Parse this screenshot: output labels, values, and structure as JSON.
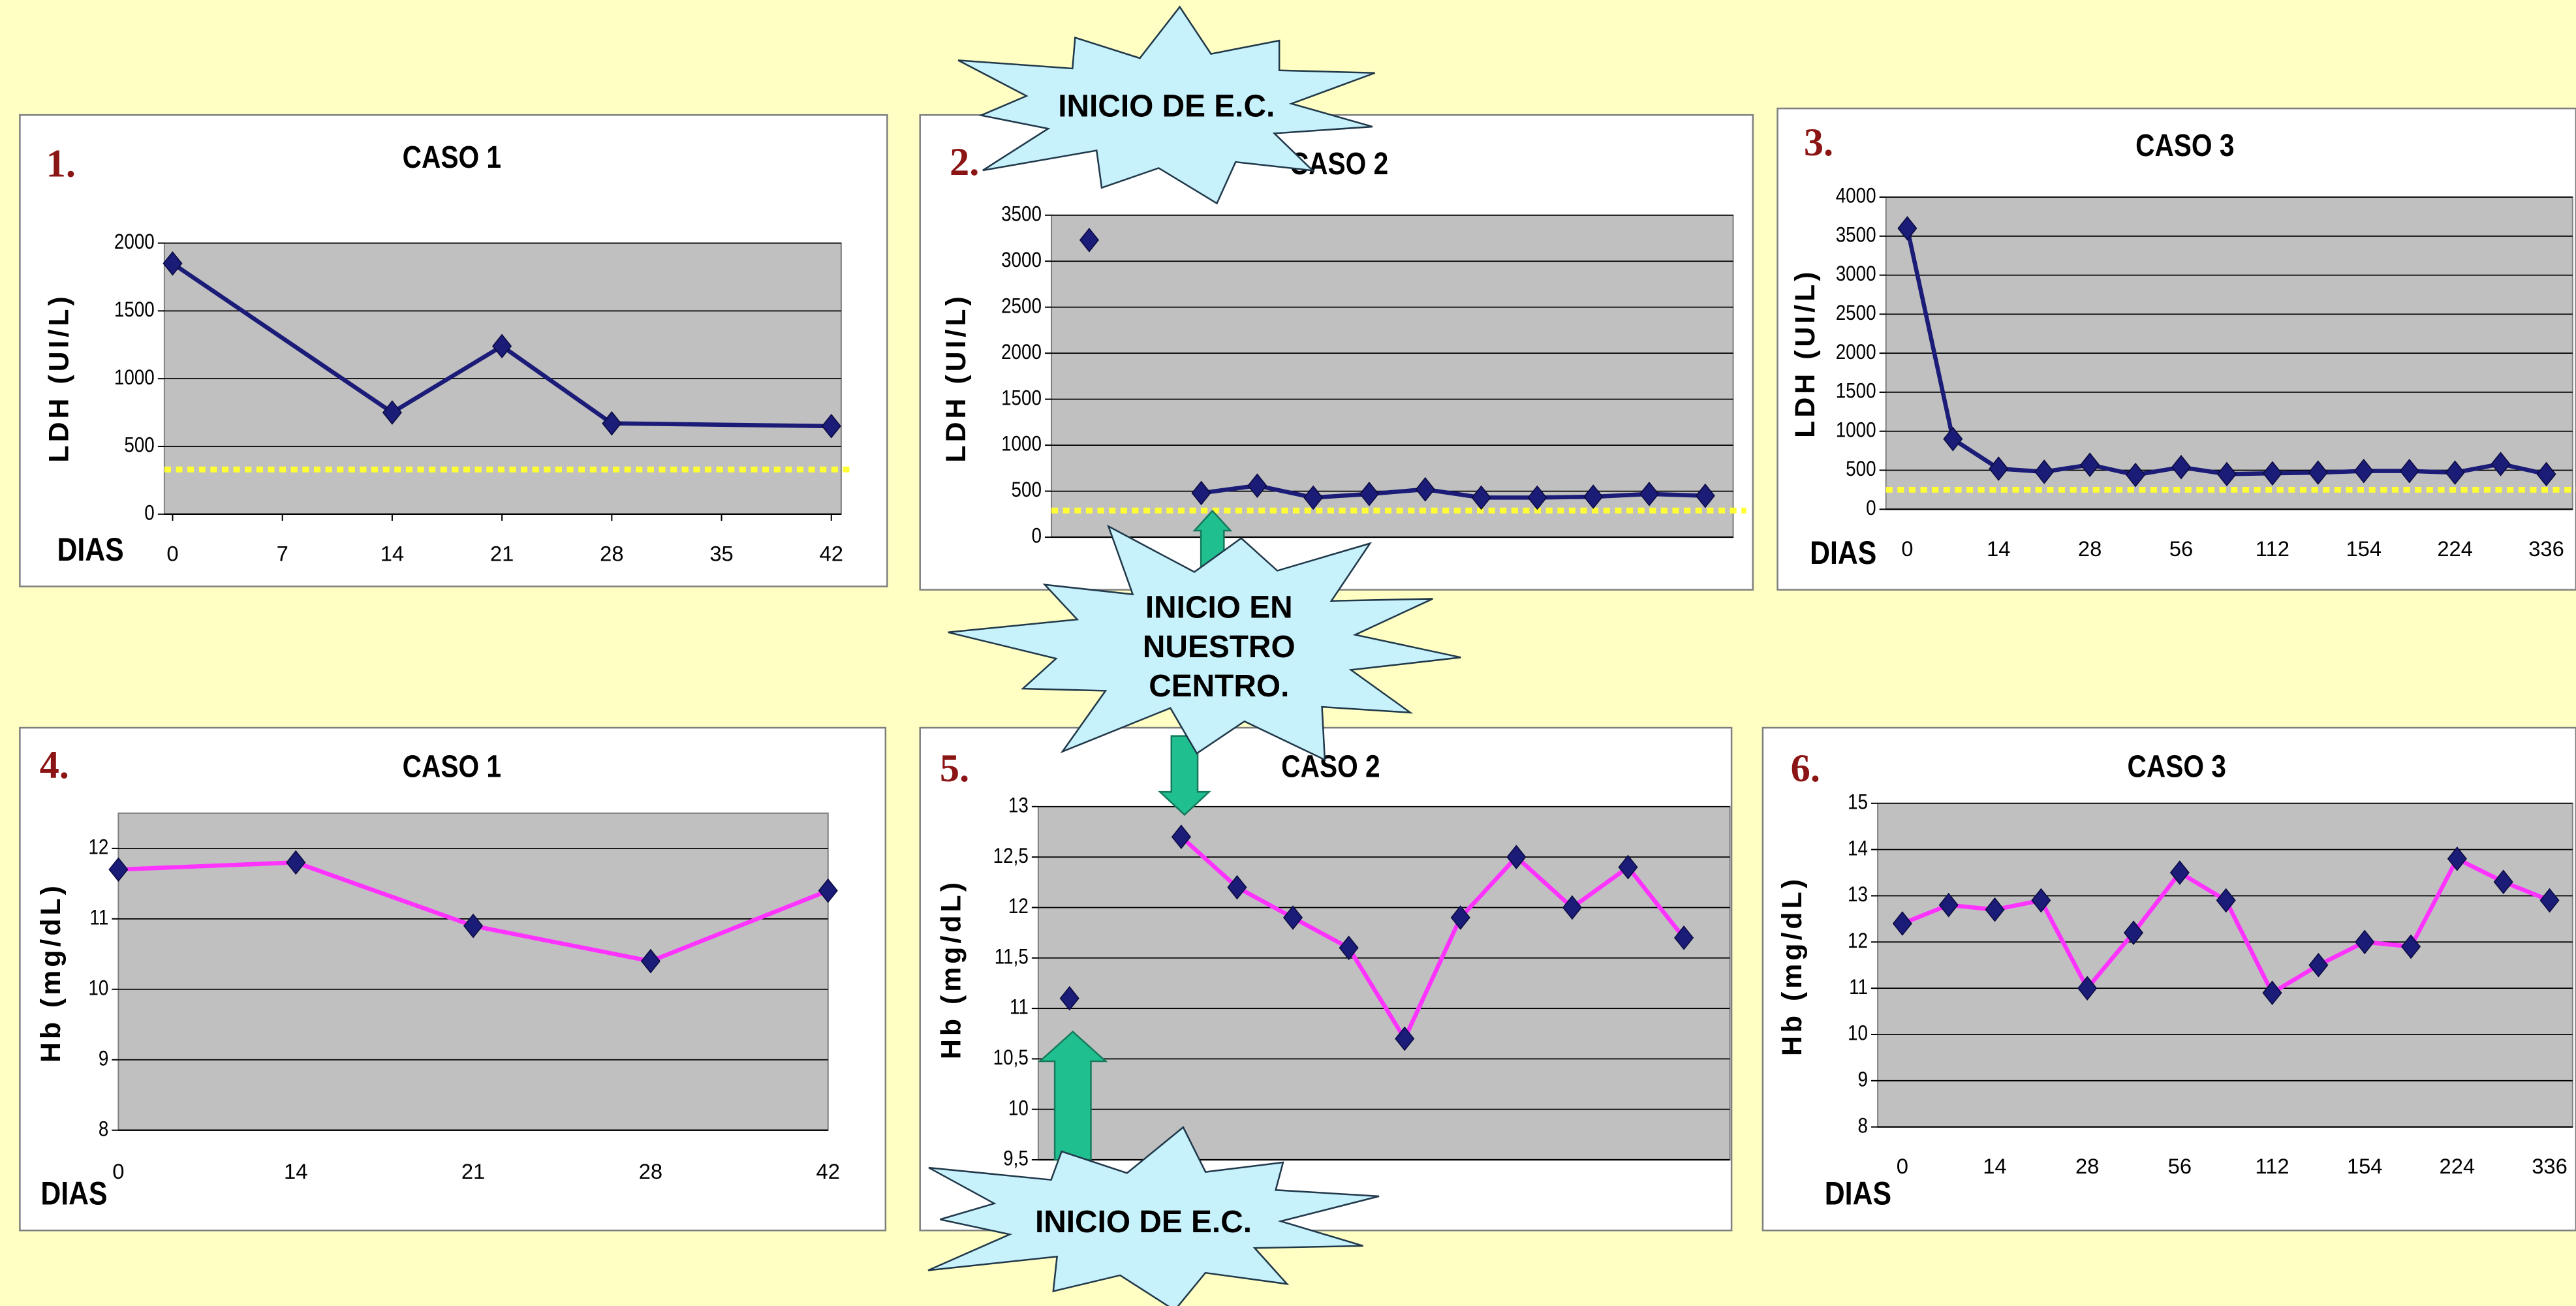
{
  "chart_data": [
    {
      "type": "line",
      "panel": "1.",
      "title": "CASO 1",
      "ylabel": "LDH (UI/L)",
      "xlabel": "DIAS",
      "x": [
        0,
        14,
        21,
        28,
        42
      ],
      "xlim": [
        0,
        42
      ],
      "xticks": [
        0,
        7,
        14,
        21,
        28,
        35,
        42
      ],
      "values": [
        1850,
        750,
        1240,
        670,
        650
      ],
      "ylim": [
        0,
        2000
      ],
      "yticks": [
        0,
        500,
        1000,
        1500,
        2000
      ],
      "grid": true,
      "color": "#1b1b78",
      "marker_color": "#1b1b78",
      "reference_line": 330,
      "reference_color": "#ffff33"
    },
    {
      "type": "line",
      "panel": "2.",
      "title": "CASO 2",
      "ylabel": "LDH (UI/L)",
      "categories": [
        null,
        null,
        null,
        null,
        null,
        null,
        null,
        null,
        null,
        null,
        null,
        null
      ],
      "values": [
        3230,
        null,
        480,
        560,
        430,
        470,
        520,
        430,
        430,
        440,
        470,
        450
      ],
      "ylim": [
        0,
        3500
      ],
      "yticks": [
        0,
        500,
        1000,
        1500,
        2000,
        2500,
        3000,
        3500
      ],
      "grid": true,
      "color": "#1b1b78",
      "marker_color": "#1b1b78",
      "reference_line": 290,
      "reference_color": "#ffff33"
    },
    {
      "type": "line",
      "panel": "3.",
      "title": "CASO 3",
      "ylabel": "LDH (UI/L)",
      "xlabel": "DIAS",
      "categories": [
        "0",
        null,
        "14",
        null,
        "28",
        null,
        "56",
        null,
        "112",
        null,
        "154",
        null,
        "224",
        null,
        "336"
      ],
      "values": [
        3600,
        900,
        520,
        480,
        570,
        440,
        540,
        450,
        460,
        470,
        490,
        490,
        470,
        580,
        450
      ],
      "ylim": [
        0,
        4000
      ],
      "yticks": [
        0,
        500,
        1000,
        1500,
        2000,
        2500,
        3000,
        3500,
        4000
      ],
      "grid": true,
      "color": "#1b1b78",
      "marker_color": "#1b1b78",
      "reference_line": 250,
      "reference_color": "#ffff33"
    },
    {
      "type": "line",
      "panel": "4.",
      "title": "CASO 1",
      "ylabel": "Hb (mg/dL)",
      "xlabel": "DIAS",
      "categories": [
        "0",
        "14",
        "21",
        "28",
        "42"
      ],
      "values": [
        11.7,
        11.8,
        10.9,
        10.4,
        11.4
      ],
      "ylim": [
        8,
        12.5
      ],
      "yticks": [
        8,
        9,
        10,
        11,
        12
      ],
      "grid": true,
      "color": "#ff33ff",
      "marker_color": "#1b1b78"
    },
    {
      "type": "line",
      "panel": "5.",
      "title": "CASO 2",
      "ylabel": "Hb (mg/dL)",
      "categories": [
        null,
        null,
        null,
        null,
        null,
        null,
        null,
        null,
        null,
        null,
        null,
        null
      ],
      "values": [
        11.1,
        null,
        12.7,
        12.2,
        11.9,
        11.6,
        10.7,
        11.9,
        12.5,
        12.0,
        12.4,
        11.7
      ],
      "ylim": [
        9.5,
        13
      ],
      "yticks": [
        {
          "value": 9.5,
          "label": "9,5"
        },
        10,
        {
          "value": 10.5,
          "label": "10,5"
        },
        11,
        {
          "value": 11.5,
          "label": "11,5"
        },
        12,
        {
          "value": 12.5,
          "label": "12,5"
        },
        13
      ],
      "grid": true,
      "color": "#ff33ff",
      "marker_color": "#1b1b78"
    },
    {
      "type": "line",
      "panel": "6.",
      "title": "CASO 3",
      "ylabel": "Hb (mg/dL)",
      "xlabel": "DIAS",
      "categories": [
        "0",
        null,
        "14",
        null,
        "28",
        null,
        "56",
        null,
        "112",
        null,
        "154",
        null,
        "224",
        null,
        "336"
      ],
      "values": [
        12.4,
        12.8,
        12.7,
        12.9,
        11.0,
        12.2,
        13.5,
        12.9,
        10.9,
        11.5,
        12.0,
        11.9,
        13.8,
        13.3,
        12.9
      ],
      "ylim": [
        8,
        15
      ],
      "yticks": [
        8,
        9,
        10,
        11,
        12,
        13,
        14,
        15
      ],
      "grid": true,
      "color": "#ff33ff",
      "marker_color": "#1b1b78"
    }
  ],
  "annotations": [
    [
      "INICIO DE E.C."
    ],
    [
      "INICIO EN",
      "NUESTRO",
      "CENTRO."
    ],
    [
      "INICIO DE E.C."
    ]
  ]
}
